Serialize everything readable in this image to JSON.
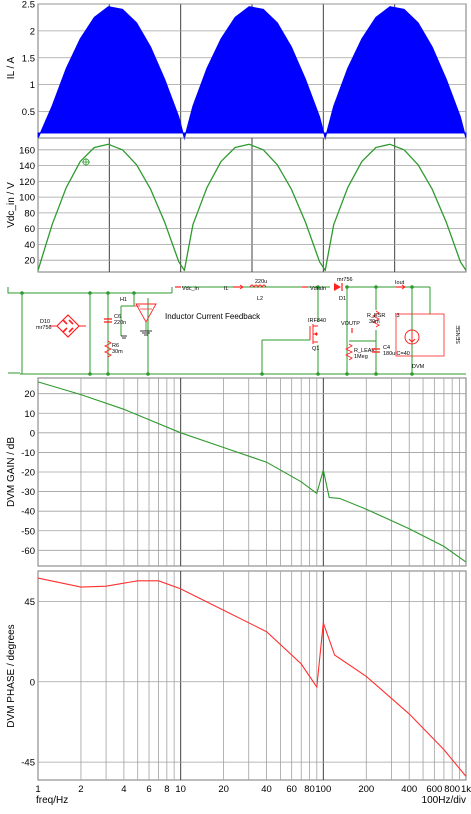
{
  "chart_data": [
    {
      "type": "area",
      "ylabel": "IL / A",
      "yticks": [
        0.5,
        1.0,
        1.5,
        2.0,
        2.5
      ],
      "ylim": [
        0.1,
        2.5
      ],
      "series": [
        {
          "values": [
            [
              0,
              0.0
            ],
            [
              0.05,
              0.6
            ],
            [
              0.1,
              1.3
            ],
            [
              0.15,
              1.85
            ],
            [
              0.2,
              2.25
            ],
            [
              0.25,
              2.45
            ],
            [
              0.3,
              2.4
            ],
            [
              0.35,
              2.15
            ],
            [
              0.4,
              1.7
            ],
            [
              0.45,
              1.1
            ],
            [
              0.5,
              0.4
            ],
            [
              0.52,
              0.0
            ],
            [
              0.55,
              0.6
            ],
            [
              0.6,
              1.3
            ],
            [
              0.65,
              1.85
            ],
            [
              0.7,
              2.25
            ],
            [
              0.75,
              2.45
            ],
            [
              0.8,
              2.4
            ],
            [
              0.85,
              2.15
            ],
            [
              0.9,
              1.7
            ],
            [
              0.95,
              1.1
            ],
            [
              1.0,
              0.4
            ],
            [
              1.02,
              0.0
            ],
            [
              1.05,
              0.6
            ],
            [
              1.1,
              1.3
            ],
            [
              1.15,
              1.85
            ],
            [
              1.2,
              2.25
            ],
            [
              1.25,
              2.45
            ],
            [
              1.3,
              2.4
            ],
            [
              1.35,
              2.15
            ],
            [
              1.4,
              1.7
            ],
            [
              1.45,
              1.1
            ],
            [
              1.5,
              0.4
            ],
            [
              1.52,
              0.0
            ]
          ]
        }
      ],
      "color": "#0000ff",
      "grid": true
    },
    {
      "type": "line",
      "ylabel": "Vdc_in / V",
      "yticks": [
        20,
        40,
        60,
        80,
        100,
        120,
        140,
        160
      ],
      "ylim": [
        5,
        175
      ],
      "series": [
        {
          "values": [
            [
              0,
              7
            ],
            [
              0.05,
              65
            ],
            [
              0.1,
              112
            ],
            [
              0.15,
              145
            ],
            [
              0.2,
              163
            ],
            [
              0.25,
              167
            ],
            [
              0.3,
              160
            ],
            [
              0.35,
              141
            ],
            [
              0.4,
              110
            ],
            [
              0.45,
              68
            ],
            [
              0.5,
              18
            ],
            [
              0.52,
              7
            ],
            [
              0.55,
              65
            ],
            [
              0.6,
              112
            ],
            [
              0.65,
              145
            ],
            [
              0.7,
              163
            ],
            [
              0.75,
              167
            ],
            [
              0.8,
              160
            ],
            [
              0.85,
              141
            ],
            [
              0.9,
              110
            ],
            [
              0.95,
              68
            ],
            [
              1.0,
              18
            ],
            [
              1.02,
              7
            ],
            [
              1.05,
              65
            ],
            [
              1.1,
              112
            ],
            [
              1.15,
              145
            ],
            [
              1.2,
              163
            ],
            [
              1.25,
              167
            ],
            [
              1.3,
              160
            ],
            [
              1.35,
              141
            ],
            [
              1.4,
              110
            ],
            [
              1.45,
              68
            ],
            [
              1.5,
              18
            ],
            [
              1.52,
              7
            ]
          ]
        }
      ],
      "color": "#2e9a2e",
      "grid": true
    },
    {
      "type": "line",
      "ylabel": "DVM GAIN / dB",
      "yticks": [
        20,
        10,
        0,
        -10,
        -20,
        -30,
        -40,
        -50,
        -60
      ],
      "ylim": [
        -68,
        28
      ],
      "xscale": "log",
      "xlim": [
        1,
        1000
      ],
      "series": [
        {
          "values": [
            [
              1,
              26
            ],
            [
              2,
              19.5
            ],
            [
              4,
              12
            ],
            [
              10,
              0
            ],
            [
              20,
              -7.5
            ],
            [
              40,
              -15
            ],
            [
              70,
              -25
            ],
            [
              90,
              -31
            ],
            [
              100,
              -19
            ],
            [
              110,
              -33
            ],
            [
              130,
              -33.5
            ],
            [
              200,
              -39
            ],
            [
              400,
              -49
            ],
            [
              700,
              -58
            ],
            [
              1000,
              -66
            ]
          ]
        }
      ],
      "color": "#2e9a2e",
      "grid": true
    },
    {
      "type": "line",
      "ylabel": "DVM PHASE / degrees",
      "xlabel": "freq/Hz",
      "xticks": [
        "1",
        "2",
        "4",
        "6",
        "8",
        "10",
        "20",
        "40",
        "60",
        "80",
        "100",
        "200",
        "400",
        "600",
        "800",
        "1k"
      ],
      "yticks": [
        45,
        0,
        -45
      ],
      "ylim": [
        -55,
        62
      ],
      "xscale": "log",
      "xlim": [
        1,
        1000
      ],
      "series": [
        {
          "values": [
            [
              1,
              58
            ],
            [
              2,
              53
            ],
            [
              3,
              53.5
            ],
            [
              5,
              56.5
            ],
            [
              7,
              56.5
            ],
            [
              10,
              52
            ],
            [
              20,
              40
            ],
            [
              40,
              28
            ],
            [
              70,
              10
            ],
            [
              90,
              -3
            ],
            [
              100,
              33
            ],
            [
              120,
              15
            ],
            [
              200,
              3
            ],
            [
              400,
              -18
            ],
            [
              700,
              -38
            ],
            [
              1000,
              -53
            ]
          ]
        }
      ],
      "color": "#ff3030",
      "grid": true
    }
  ],
  "footer": {
    "xlabel": "freq/Hz",
    "div_label": "100Hz/div"
  },
  "schematic": {
    "feedback_label": "Inductor Current Feedback",
    "labels": {
      "vdc_in": "Vdc_in",
      "il": "IL",
      "inductor_value": "220u",
      "l2": "L2",
      "vdrain": "Vdrain",
      "d1_part": "mr756",
      "d1": "D1",
      "iout": "Iout",
      "r_esr": "R_ESR",
      "r_esr_value": "30m",
      "i3": "I3",
      "h1": "H1",
      "c6": "C6",
      "c6_value": "220n",
      "r6": "R6",
      "r6_value": "30m",
      "d10": "D10",
      "d10_part": "mr756",
      "mosfet": "IRF840",
      "q1": "Q1",
      "voutp": "VOUTP",
      "r_leak": "R_LEAK",
      "r_leak_value": "1Meg",
      "c4": "C4",
      "c4_value": "180u",
      "c4_ic": "IC=40",
      "dvm": "DVM",
      "sense": "SENSE"
    }
  }
}
